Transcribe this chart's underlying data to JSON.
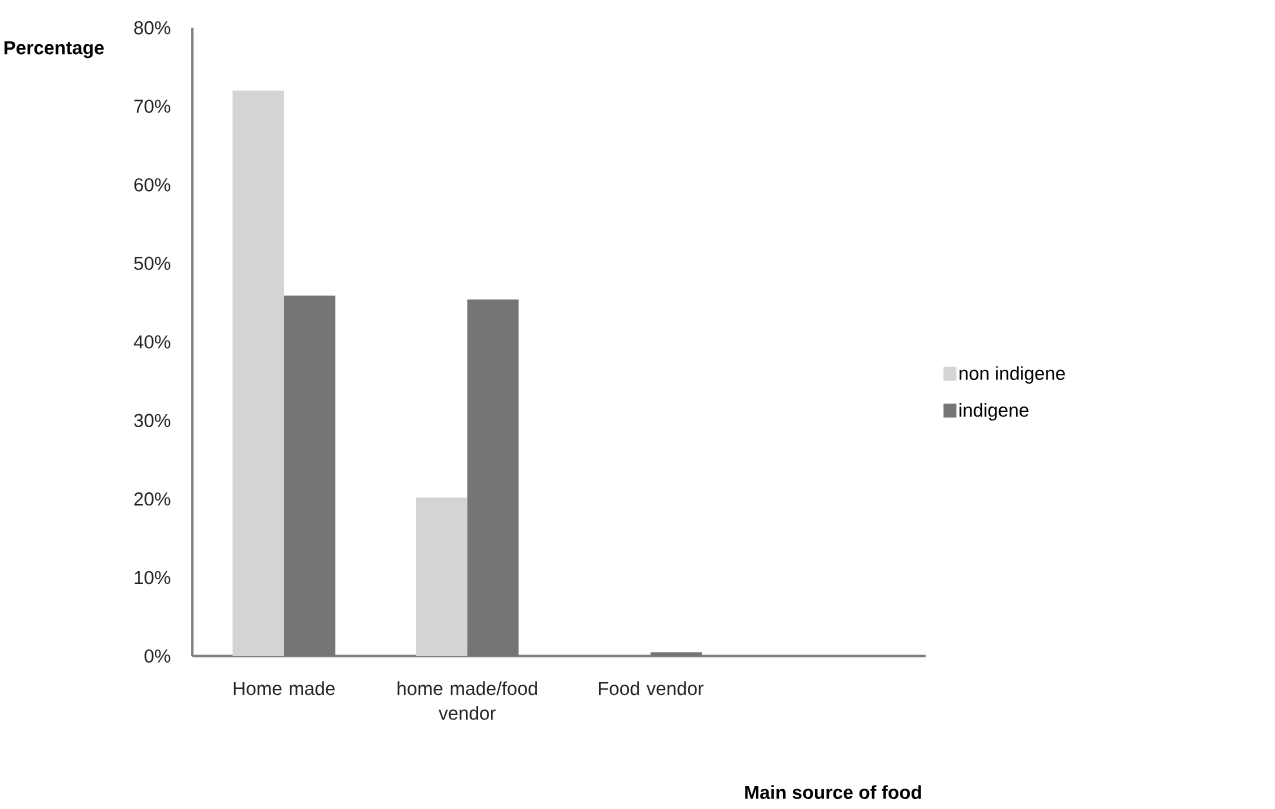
{
  "chart_data": {
    "type": "bar",
    "xlabel": "Main source of food",
    "ylabel": "Percentage",
    "categories": [
      "Home made",
      "home made/food vendor",
      "Food vendor",
      null
    ],
    "series": [
      {
        "name": "non indigene",
        "color": "#d4d4d4",
        "values": [
          72,
          20.2,
          0,
          null
        ]
      },
      {
        "name": "indigene",
        "color": "#747574",
        "values": [
          45.9,
          45.4,
          0.5,
          null
        ]
      }
    ],
    "ylim": [
      0,
      80
    ],
    "yticks": [
      {
        "value": 0,
        "label": "0%"
      },
      {
        "value": 10,
        "label": "10%"
      },
      {
        "value": 20,
        "label": "20%"
      },
      {
        "value": 30,
        "label": "30%"
      },
      {
        "value": 40,
        "label": "40%"
      },
      {
        "value": 50,
        "label": "50%"
      },
      {
        "value": 60,
        "label": "60%"
      },
      {
        "value": 70,
        "label": "70%"
      },
      {
        "value": 80,
        "label": "80%"
      }
    ],
    "legend": "right"
  }
}
